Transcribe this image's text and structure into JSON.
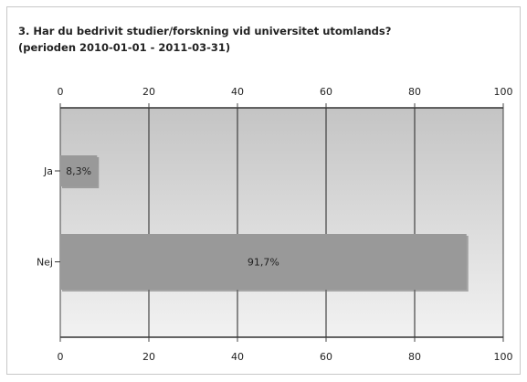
{
  "chart_data": {
    "type": "bar",
    "orientation": "horizontal",
    "title": "3. Har du bedrivit studier/forskning vid universitet utomlands?",
    "subtitle": "(perioden 2010-01-01 - 2011-03-31)",
    "categories": [
      "Ja",
      "Nej"
    ],
    "values": [
      8.3,
      91.7
    ],
    "data_labels": [
      "8,3%",
      "91,7%"
    ],
    "xlim": [
      0,
      100
    ],
    "x_ticks": [
      "0",
      "20",
      "40",
      "60",
      "80",
      "100"
    ],
    "grid": true,
    "legend": "none",
    "bar_color": "#999999",
    "bar_shadow_color": "#6e6e6e",
    "plot_gradient_top": "#c4c4c4",
    "plot_gradient_bottom": "#f2f2f2"
  }
}
